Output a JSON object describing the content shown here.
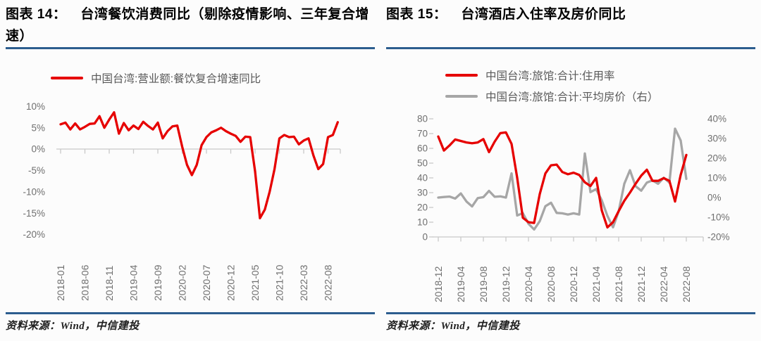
{
  "figures": [
    {
      "label": "图表 14：",
      "title": "台湾餐饮消费同比（剔除疫情影响、三年复合增速）",
      "source": "资料来源：Wind，中信建投"
    },
    {
      "label": "图表 15：",
      "title": "台湾酒店入住率及房价同比",
      "source": "资料来源：Wind，中信建投"
    }
  ],
  "chart_data": [
    {
      "type": "line",
      "title": "台湾餐饮消费同比（剔除疫情影响、三年复合增速）",
      "x_start": "2018-01",
      "x_freq": "monthly",
      "x_tick_step": 5,
      "x_tick_labels": [
        "2018-01",
        "2018-06",
        "2018-11",
        "2019-04",
        "2019-09",
        "2020-02",
        "2020-07",
        "2020-12",
        "2021-05",
        "2021-10",
        "2022-03",
        "2022-08"
      ],
      "ylim": [
        -20,
        10
      ],
      "y_tick_labels": [
        "10%",
        "5%",
        "0%",
        "-5%",
        "-10%",
        "-15%",
        "-20%"
      ],
      "grid": false,
      "legend_position": "top-center",
      "series": [
        {
          "name": "中国台湾:营业额:餐饮复合增速同比",
          "color": "#e60000",
          "axis": "left",
          "unit": "%",
          "values": [
            5.8,
            6.2,
            4.6,
            6.0,
            4.6,
            5.2,
            5.9,
            6.0,
            7.7,
            5.0,
            6.9,
            8.6,
            3.6,
            6.1,
            4.4,
            5.5,
            4.7,
            6.4,
            5.4,
            4.6,
            6.2,
            2.5,
            4.2,
            5.3,
            5.5,
            0.6,
            -3.7,
            -6.1,
            -3.7,
            0.9,
            2.8,
            3.9,
            4.4,
            5.0,
            4.2,
            3.6,
            3.1,
            1.7,
            2.9,
            2.8,
            -5.2,
            -16.2,
            -14.2,
            -10.0,
            -4.7,
            2.5,
            3.3,
            2.8,
            2.9,
            1.1,
            2.0,
            2.5,
            -1.5,
            -4.7,
            -3.5,
            2.8,
            3.3,
            6.3
          ]
        }
      ]
    },
    {
      "type": "line",
      "title": "台湾酒店入住率及房价同比",
      "x_start": "2018-12",
      "x_freq": "monthly",
      "x_tick_step": 4,
      "x_tick_labels": [
        "2018-12",
        "2019-04",
        "2019-08",
        "2019-12",
        "2020-04",
        "2020-08",
        "2020-12",
        "2021-04",
        "2021-08",
        "2021-12",
        "2022-04",
        "2022-08"
      ],
      "left_ylim": [
        0,
        80
      ],
      "left_y_tick_labels": [
        "80",
        "70",
        "60",
        "50",
        "40",
        "30",
        "20",
        "10",
        "0"
      ],
      "right_ylim": [
        -20,
        40
      ],
      "right_y_tick_labels": [
        "40%",
        "30%",
        "20%",
        "10%",
        "0%",
        "-10%",
        "-20%"
      ],
      "grid": false,
      "legend_position": "top-center",
      "series": [
        {
          "name": "中国台湾:旅馆:合计:住用率",
          "color": "#e60000",
          "axis": "left",
          "unit": "%",
          "values": [
            68,
            58.5,
            62,
            66,
            65,
            64,
            63.5,
            64,
            66.3,
            57.5,
            64.5,
            70.3,
            70.8,
            63,
            40,
            13,
            10,
            9.5,
            29,
            43,
            48.5,
            49,
            44,
            42.5,
            43.5,
            42,
            37,
            34.5,
            40,
            18,
            6.5,
            10,
            17.5,
            24.5,
            30,
            36,
            41.5,
            45.5,
            38,
            38,
            39.8,
            38,
            24,
            42,
            55.5
          ]
        },
        {
          "name": "中国台湾:旅馆:合计:平均房价（右）",
          "color": "#a6a6a6",
          "axis": "right",
          "unit": "%",
          "values": [
            0,
            0.3,
            0.5,
            -0.5,
            2.1,
            -2.0,
            -4.5,
            -0.3,
            0.2,
            3.4,
            0.4,
            0.6,
            0,
            12.3,
            -9.1,
            -7.9,
            -13.3,
            -16.2,
            -12.0,
            -4.4,
            -2.6,
            -7.8,
            -8.0,
            -8.6,
            -8.0,
            -8.6,
            22.4,
            2.8,
            4.3,
            -1.4,
            -9.3,
            -15.1,
            -7.0,
            7.0,
            13.9,
            5.8,
            3.5,
            7.6,
            8.7,
            7.0,
            10.1,
            7.6,
            35.0,
            29.0,
            9.5
          ]
        }
      ]
    }
  ],
  "colors": {
    "accent_rule": "#2c5d8e",
    "axis_text": "#6f6f6f",
    "legend_text": "#595959",
    "series_red": "#e60000",
    "series_gray": "#a6a6a6"
  }
}
